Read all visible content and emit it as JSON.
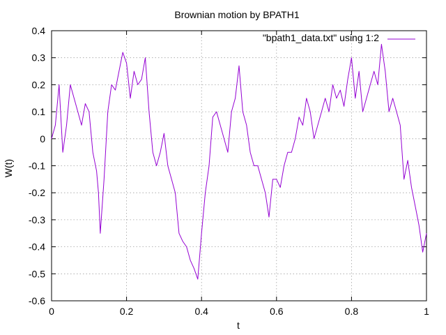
{
  "chart_data": {
    "type": "line",
    "title": "Brownian motion by BPATH1",
    "xlabel": "t",
    "ylabel": "W(t)",
    "xlim": [
      0,
      1
    ],
    "ylim": [
      -0.6,
      0.4
    ],
    "x_ticks": [
      0,
      0.2,
      0.4,
      0.6,
      0.8,
      1
    ],
    "x_tick_labels": [
      "0",
      "0.2",
      "0.4",
      "0.6",
      "0.8",
      "1"
    ],
    "y_ticks": [
      -0.6,
      -0.5,
      -0.4,
      -0.3,
      -0.2,
      -0.1,
      0,
      0.1,
      0.2,
      0.3,
      0.4
    ],
    "y_tick_labels": [
      "-0.6",
      "-0.5",
      "-0.4",
      "-0.3",
      "-0.2",
      "-0.1",
      "0",
      "0.1",
      "0.2",
      "0.3",
      "0.4"
    ],
    "grid": true,
    "legend_position": "top-right",
    "series": [
      {
        "name": "\"bpath1_data.txt\" using 1:2",
        "color": "#9400d3",
        "x": [
          0,
          0.01,
          0.02,
          0.03,
          0.04,
          0.05,
          0.06,
          0.07,
          0.08,
          0.09,
          0.1,
          0.11,
          0.12,
          0.125,
          0.13,
          0.14,
          0.15,
          0.16,
          0.17,
          0.18,
          0.19,
          0.2,
          0.21,
          0.22,
          0.23,
          0.24,
          0.25,
          0.26,
          0.27,
          0.28,
          0.29,
          0.3,
          0.31,
          0.32,
          0.33,
          0.34,
          0.35,
          0.36,
          0.37,
          0.38,
          0.39,
          0.4,
          0.41,
          0.42,
          0.43,
          0.44,
          0.45,
          0.46,
          0.47,
          0.48,
          0.49,
          0.5,
          0.51,
          0.52,
          0.53,
          0.54,
          0.55,
          0.56,
          0.57,
          0.58,
          0.59,
          0.6,
          0.61,
          0.62,
          0.63,
          0.64,
          0.65,
          0.66,
          0.67,
          0.68,
          0.69,
          0.7,
          0.71,
          0.72,
          0.73,
          0.74,
          0.75,
          0.76,
          0.77,
          0.78,
          0.79,
          0.8,
          0.81,
          0.82,
          0.83,
          0.84,
          0.85,
          0.86,
          0.87,
          0.88,
          0.89,
          0.9,
          0.91,
          0.92,
          0.93,
          0.94,
          0.95,
          0.96,
          0.97,
          0.98,
          0.99,
          1
        ],
        "y": [
          0,
          0.05,
          0.2,
          -0.05,
          0.05,
          0.2,
          0.15,
          0.1,
          0.05,
          0.13,
          0.1,
          -0.05,
          -0.12,
          -0.2,
          -0.35,
          -0.15,
          0.1,
          0.2,
          0.18,
          0.25,
          0.32,
          0.28,
          0.15,
          0.25,
          0.2,
          0.22,
          0.3,
          0.1,
          -0.05,
          -0.1,
          -0.05,
          0.02,
          -0.1,
          -0.15,
          -0.2,
          -0.35,
          -0.38,
          -0.4,
          -0.45,
          -0.48,
          -0.52,
          -0.35,
          -0.2,
          -0.1,
          0.08,
          0.1,
          0.05,
          0,
          -0.05,
          0.1,
          0.15,
          0.27,
          0.1,
          0.05,
          -0.05,
          -0.1,
          -0.1,
          -0.15,
          -0.2,
          -0.29,
          -0.15,
          -0.15,
          -0.18,
          -0.1,
          -0.05,
          -0.05,
          0,
          0.08,
          0.05,
          0.15,
          0.1,
          0,
          0.05,
          0.1,
          0.15,
          0.1,
          0.2,
          0.15,
          0.18,
          0.12,
          0.22,
          0.3,
          0.15,
          0.25,
          0.1,
          0.15,
          0.2,
          0.25,
          0.2,
          0.35,
          0.25,
          0.1,
          0.15,
          0.1,
          0.05,
          -0.15,
          -0.08,
          -0.18,
          -0.25,
          -0.32,
          -0.42,
          -0.35
        ]
      }
    ]
  }
}
